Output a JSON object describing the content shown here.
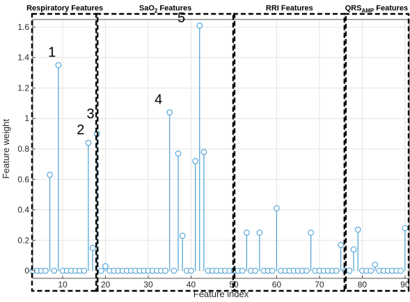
{
  "chart_data": {
    "type": "stem",
    "xlabel": "Feature index",
    "ylabel": "Feature weight",
    "xlim": [
      3,
      91
    ],
    "ylim": [
      -0.05,
      1.65
    ],
    "x_ticks": [
      10,
      20,
      30,
      40,
      50,
      60,
      70,
      80,
      90
    ],
    "y_ticks": [
      0,
      0.2,
      0.4,
      0.6,
      0.8,
      1,
      1.2,
      1.4,
      1.6
    ],
    "grid": true,
    "stem_color": "#4a9fd4",
    "regions": [
      {
        "title": "Respiratory Features",
        "sub": "",
        "suffix": "",
        "x_start": 3,
        "x_end": 18
      },
      {
        "title": "SaO",
        "sub": "2",
        "suffix": " Features",
        "x_start": 18,
        "x_end": 50
      },
      {
        "title": "RRI Features",
        "sub": "",
        "suffix": "",
        "x_start": 50,
        "x_end": 76
      },
      {
        "title": "QRS",
        "sub": "AMP",
        "suffix": " Features",
        "x_start": 76,
        "x_end": 91
      }
    ],
    "annotations": [
      {
        "label": "1",
        "x": 8,
        "y": 1.35
      },
      {
        "label": "2",
        "x": 15,
        "y": 0.84
      },
      {
        "label": "3",
        "x": 17,
        "y": 0.9
      },
      {
        "label": "4",
        "x": 34,
        "y": 1.04
      },
      {
        "label": "5",
        "x": 41,
        "y": 1.61
      }
    ],
    "x": [
      3,
      4,
      5,
      6,
      7,
      8,
      9,
      10,
      11,
      12,
      13,
      14,
      15,
      16,
      17,
      18,
      19,
      20,
      21,
      22,
      23,
      24,
      25,
      26,
      27,
      28,
      29,
      30,
      31,
      32,
      33,
      34,
      35,
      36,
      37,
      38,
      39,
      40,
      41,
      42,
      43,
      44,
      45,
      46,
      47,
      48,
      49,
      50,
      51,
      52,
      53,
      54,
      55,
      56,
      57,
      58,
      59,
      60,
      61,
      62,
      63,
      64,
      65,
      66,
      67,
      68,
      69,
      70,
      71,
      72,
      73,
      74,
      75,
      76,
      77,
      78,
      79,
      80,
      81,
      82,
      83,
      84,
      85,
      86,
      87,
      88,
      89,
      90
    ],
    "y": [
      0,
      0,
      0,
      0,
      0.63,
      0,
      1.35,
      0,
      0,
      0,
      0,
      0,
      0,
      0.84,
      0.15,
      0.9,
      0,
      0.03,
      0,
      0,
      0,
      0,
      0,
      0,
      0,
      0,
      0,
      0,
      0,
      0,
      0,
      0,
      1.04,
      0,
      0.77,
      0.23,
      0,
      0,
      0.72,
      1.61,
      0.78,
      0,
      0,
      0,
      0,
      0,
      0,
      0,
      0,
      0,
      0.25,
      0,
      0,
      0.25,
      0,
      0,
      0,
      0.41,
      0,
      0,
      0,
      0,
      0,
      0,
      0,
      0.25,
      0,
      0,
      0,
      0,
      0,
      0,
      0.17,
      0,
      0,
      0.14,
      0.27,
      0,
      0,
      0,
      0.04,
      0,
      0,
      0,
      0,
      0,
      0,
      0.28
    ]
  }
}
